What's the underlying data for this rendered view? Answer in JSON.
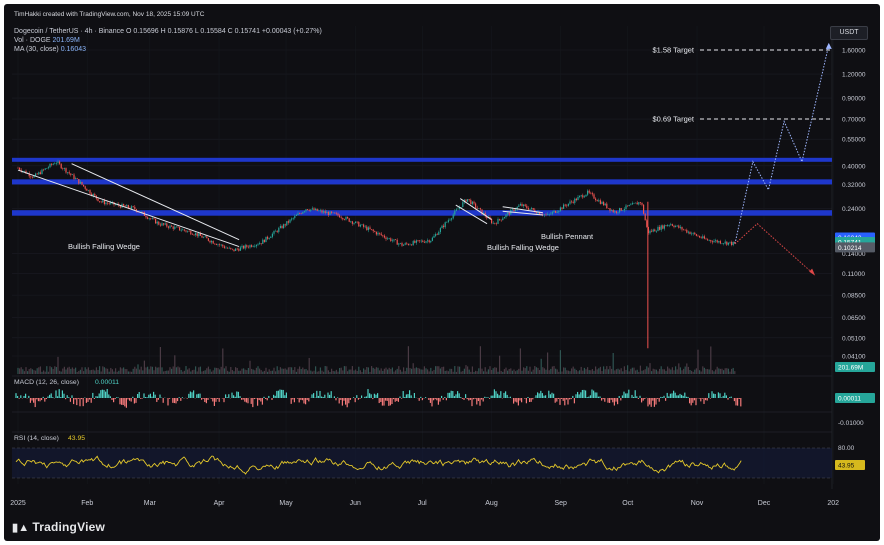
{
  "header": {
    "credit": "TimHakki created with TradingView.com, Nov 18, 2025 15:09 UTC",
    "symbol_line": "Dogecoin / TetherUS · 4h · Binance",
    "ohlc": "O 0.15696  H 0.15876  L 0.15584  C 0.15741  +0.00043 (+0.27%)",
    "vol_label": "Vol · DOGE",
    "vol_value": "201.69M",
    "ma_label": "MA (30, close)",
    "ma_value": "0.16043"
  },
  "brand": "TradingView",
  "currency_badge": "USDT",
  "colors": {
    "background": "#0f0f13",
    "zone": "#1f3bdb",
    "up": "#26a69a",
    "down": "#ef5350",
    "rsi": "#e5c92a",
    "macd_up": "#4fd1c5",
    "macd_down": "#f47a7a",
    "target_up": "#9fb7ff",
    "target_down": "#e04848"
  },
  "chart_data": {
    "type": "candlestick",
    "title": "Dogecoin / TetherUS · 4h · Binance",
    "x_ticks": [
      "2025",
      "Feb",
      "Mar",
      "Apr",
      "May",
      "Jun",
      "Jul",
      "Aug",
      "Sep",
      "Oct",
      "Nov",
      "Dec",
      "202"
    ],
    "y_scale": "log",
    "y_ticks": [
      "1.60000",
      "1.20000",
      "0.90000",
      "0.70000",
      "0.55000",
      "0.40000",
      "0.32000",
      "0.24000",
      "0.14000",
      "0.11000",
      "0.08500",
      "0.06500",
      "0.05100",
      "0.04100"
    ],
    "price_path": [
      {
        "x": "2025-01-01",
        "y": 0.39
      },
      {
        "x": "2025-01-08",
        "y": 0.35
      },
      {
        "x": "2025-01-18",
        "y": 0.42
      },
      {
        "x": "2025-01-27",
        "y": 0.34
      },
      {
        "x": "2025-02-07",
        "y": 0.26
      },
      {
        "x": "2025-02-22",
        "y": 0.24
      },
      {
        "x": "2025-03-05",
        "y": 0.2
      },
      {
        "x": "2025-03-20",
        "y": 0.18
      },
      {
        "x": "2025-04-07",
        "y": 0.145
      },
      {
        "x": "2025-04-20",
        "y": 0.16
      },
      {
        "x": "2025-05-10",
        "y": 0.24
      },
      {
        "x": "2025-05-25",
        "y": 0.22
      },
      {
        "x": "2025-06-10",
        "y": 0.18
      },
      {
        "x": "2025-06-22",
        "y": 0.155
      },
      {
        "x": "2025-07-05",
        "y": 0.165
      },
      {
        "x": "2025-07-21",
        "y": 0.27
      },
      {
        "x": "2025-08-02",
        "y": 0.2
      },
      {
        "x": "2025-08-14",
        "y": 0.25
      },
      {
        "x": "2025-08-26",
        "y": 0.22
      },
      {
        "x": "2025-09-13",
        "y": 0.29
      },
      {
        "x": "2025-09-25",
        "y": 0.23
      },
      {
        "x": "2025-10-07",
        "y": 0.26
      },
      {
        "x": "2025-10-10",
        "y": 0.18
      },
      {
        "x": "2025-10-20",
        "y": 0.2
      },
      {
        "x": "2025-11-05",
        "y": 0.165
      },
      {
        "x": "2025-11-18",
        "y": 0.157
      }
    ],
    "ma_30_last": 0.16043,
    "last_close": 0.15741,
    "resistance_zones": [
      {
        "low": 0.42,
        "high": 0.44
      },
      {
        "low": 0.32,
        "high": 0.34
      },
      {
        "low": 0.22,
        "high": 0.235
      }
    ],
    "targets": [
      {
        "label": "$1.58 Target",
        "value": 1.6
      },
      {
        "label": "$0.69 Target",
        "value": 0.7
      }
    ],
    "projection_up": [
      {
        "x": "2025-11-18",
        "y": 0.157
      },
      {
        "x": "2025-11-26",
        "y": 0.42
      },
      {
        "x": "2025-12-03",
        "y": 0.3
      },
      {
        "x": "2025-12-10",
        "y": 0.68
      },
      {
        "x": "2025-12-18",
        "y": 0.42
      },
      {
        "x": "2025-12-30",
        "y": 1.7
      }
    ],
    "projection_down": [
      {
        "x": "2025-11-18",
        "y": 0.157
      },
      {
        "x": "2025-11-28",
        "y": 0.2
      },
      {
        "x": "2025-12-23",
        "y": 0.11
      }
    ],
    "annotations": [
      "Bullish Falling Wedge",
      "Bullish Falling Wedge",
      "Bullish Pennant"
    ],
    "price_badges": [
      {
        "text": "0.16043",
        "color": "#2962ff"
      },
      {
        "text": "0.15741",
        "color": "#26a69a"
      },
      {
        "text": "0.10214",
        "color": "#555b66"
      }
    ],
    "volume_badge": "201.69M",
    "macd": {
      "label": "MACD (12, 26, close)",
      "value": "0.00011",
      "ticks": [
        "-0.01000"
      ]
    },
    "rsi": {
      "label": "RSI (14, close)",
      "value": "43.95",
      "ticks": [
        "80.00"
      ]
    }
  }
}
